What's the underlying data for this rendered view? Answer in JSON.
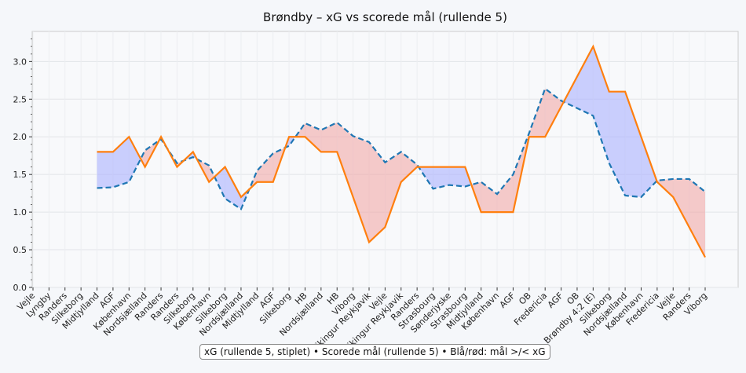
{
  "chart_data": {
    "type": "line",
    "title": "Brøndby – xG vs scorede mål (rullende 5)",
    "xlabel": "",
    "ylabel": "",
    "ylim": [
      0,
      3.4
    ],
    "yticks": [
      "0.0",
      "0.5",
      "1.0",
      "1.5",
      "2.0",
      "2.5",
      "3.0"
    ],
    "grid": true,
    "categories": [
      "Vejle",
      "Lyngby",
      "Randers",
      "Silkeborg",
      "Midtjylland",
      "AGF",
      "København",
      "Nordsjælland",
      "Randers",
      "Randers",
      "Silkeborg",
      "København",
      "Silkeborg",
      "Nordsjælland",
      "Midtjylland",
      "AGF",
      "Silkeborg",
      "HB",
      "Nordsjælland",
      "HB",
      "Viborg",
      "Vikingur Reykjavik",
      "Vejle",
      "Vikingur Reykjavik",
      "Randers",
      "Strasbourg",
      "Sønderjyske",
      "Strasbourg",
      "Midtjylland",
      "København",
      "AGF",
      "OB",
      "Fredericia",
      "AGF",
      "OB",
      "Brøndby 4:2 (E)",
      "Silkeborg",
      "Nordsjælland",
      "København",
      "Fredericia",
      "Vejle",
      "Randers",
      "Viborg"
    ],
    "series": [
      {
        "name": "xG (rullende 5)",
        "style": "dashed",
        "color": "#1f77b4",
        "values": [
          null,
          null,
          null,
          null,
          1.32,
          1.33,
          1.4,
          1.82,
          1.97,
          1.65,
          1.73,
          1.62,
          1.18,
          1.04,
          1.55,
          1.78,
          1.88,
          2.18,
          2.09,
          2.19,
          2.01,
          1.93,
          1.66,
          1.8,
          1.63,
          1.31,
          1.36,
          1.34,
          1.4,
          1.24,
          1.5,
          2.05,
          2.64,
          2.48,
          2.38,
          2.28,
          1.65,
          1.22,
          1.2,
          1.42,
          1.44,
          1.44,
          1.27
        ]
      },
      {
        "name": "Scorede mål (rullende 5)",
        "style": "solid",
        "color": "#ff7f0e",
        "values": [
          null,
          null,
          null,
          null,
          1.8,
          1.8,
          2.0,
          1.6,
          2.0,
          1.6,
          1.8,
          1.4,
          1.6,
          1.2,
          1.4,
          1.4,
          2.0,
          2.0,
          1.8,
          1.8,
          1.2,
          0.6,
          0.8,
          1.4,
          1.6,
          1.6,
          1.6,
          1.6,
          1.0,
          1.0,
          1.0,
          2.0,
          2.0,
          2.4,
          2.8,
          3.2,
          2.6,
          2.6,
          2.0,
          1.4,
          1.2,
          0.8,
          0.4
        ]
      }
    ],
    "fill_colors": {
      "above": "#aab0ff",
      "below": "#f2a8a8"
    },
    "legend_text": "xG (rullende 5, stiplet) • Scorede mål (rullende 5) • Blå/rød: mål >/< xG",
    "legend_placement": "bottom-center"
  }
}
